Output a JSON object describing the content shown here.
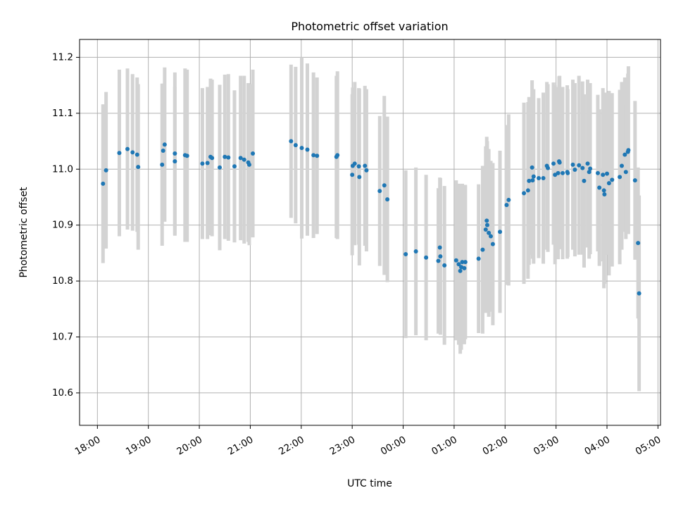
{
  "chart_data": {
    "type": "scatter",
    "title": "Photometric offset variation",
    "xlabel": "UTC time",
    "ylabel": "Photometric offset",
    "x_unit": "hours (UTC, continuous from 18:00 on first day)",
    "xlim": [
      17.65,
      29.05
    ],
    "ylim": [
      10.542,
      11.232
    ],
    "x_ticks": [
      {
        "value": 18,
        "label": "18:00"
      },
      {
        "value": 19,
        "label": "19:00"
      },
      {
        "value": 20,
        "label": "20:00"
      },
      {
        "value": 21,
        "label": "21:00"
      },
      {
        "value": 22,
        "label": "22:00"
      },
      {
        "value": 23,
        "label": "23:00"
      },
      {
        "value": 24,
        "label": "00:00"
      },
      {
        "value": 25,
        "label": "01:00"
      },
      {
        "value": 26,
        "label": "02:00"
      },
      {
        "value": 27,
        "label": "03:00"
      },
      {
        "value": 28,
        "label": "04:00"
      },
      {
        "value": 29,
        "label": "05:00"
      }
    ],
    "y_ticks": [
      {
        "value": 10.6,
        "label": "10.6"
      },
      {
        "value": 10.7,
        "label": "10.7"
      },
      {
        "value": 10.8,
        "label": "10.8"
      },
      {
        "value": 10.9,
        "label": "10.9"
      },
      {
        "value": 11.0,
        "label": "11.0"
      },
      {
        "value": 11.1,
        "label": "11.1"
      },
      {
        "value": 11.2,
        "label": "11.2"
      }
    ],
    "grid": true,
    "colors": {
      "points": "#1f77b4",
      "errorbars": "#d3d3d3"
    },
    "series": [
      {
        "points": [
          [
            18.11,
            10.974,
            0.142
          ],
          [
            18.17,
            10.998,
            0.14
          ],
          [
            18.43,
            11.029,
            0.149
          ],
          [
            18.59,
            11.036,
            0.144
          ],
          [
            18.69,
            11.03,
            0.14
          ],
          [
            18.78,
            11.026,
            0.138
          ],
          [
            18.8,
            11.004,
            0.148
          ],
          [
            19.27,
            11.008,
            0.145
          ],
          [
            19.29,
            11.033,
            0.12
          ],
          [
            19.32,
            11.044,
            0.138
          ],
          [
            19.52,
            11.028,
            0.145
          ],
          [
            19.52,
            11.014,
            0.133
          ],
          [
            19.72,
            11.025,
            0.155
          ],
          [
            19.76,
            11.024,
            0.154
          ],
          [
            20.06,
            11.01,
            0.135
          ],
          [
            20.16,
            11.011,
            0.136
          ],
          [
            20.22,
            11.022,
            0.14
          ],
          [
            20.25,
            11.02,
            0.14
          ],
          [
            20.4,
            11.003,
            0.148
          ],
          [
            20.5,
            11.022,
            0.147
          ],
          [
            20.57,
            11.021,
            0.149
          ],
          [
            20.69,
            11.005,
            0.136
          ],
          [
            20.81,
            11.02,
            0.147
          ],
          [
            20.88,
            11.017,
            0.15
          ],
          [
            20.96,
            11.012,
            0.142
          ],
          [
            20.98,
            11.008,
            0.144
          ],
          [
            21.05,
            11.028,
            0.15
          ],
          [
            21.8,
            11.05,
            0.137
          ],
          [
            21.89,
            11.043,
            0.14
          ],
          [
            22.01,
            11.038,
            0.162
          ],
          [
            22.12,
            11.035,
            0.154
          ],
          [
            22.24,
            11.025,
            0.148
          ],
          [
            22.31,
            11.024,
            0.14
          ],
          [
            22.69,
            11.022,
            0.145
          ],
          [
            22.71,
            11.025,
            0.15
          ],
          [
            23.01,
            11.006,
            0.14
          ],
          [
            23.05,
            11.01,
            0.146
          ],
          [
            23.0,
            10.99,
            0.144
          ],
          [
            23.13,
            11.005,
            0.14
          ],
          [
            23.14,
            10.986,
            0.158
          ],
          [
            23.25,
            11.006,
            0.143
          ],
          [
            23.28,
            10.998,
            0.145
          ],
          [
            23.54,
            10.961,
            0.134
          ],
          [
            23.63,
            10.971,
            0.16
          ],
          [
            23.69,
            10.946,
            0.148
          ],
          [
            24.05,
            10.848,
            0.15
          ],
          [
            24.25,
            10.853,
            0.15
          ],
          [
            24.45,
            10.842,
            0.148
          ],
          [
            24.69,
            10.836,
            0.13
          ],
          [
            24.72,
            10.86,
            0.125
          ],
          [
            24.73,
            10.844,
            0.14
          ],
          [
            24.81,
            10.828,
            0.142
          ],
          [
            25.04,
            10.837,
            0.143
          ],
          [
            25.09,
            10.83,
            0.144
          ],
          [
            25.12,
            10.818,
            0.148
          ],
          [
            25.14,
            10.825,
            0.148
          ],
          [
            25.16,
            10.834,
            0.14
          ],
          [
            25.2,
            10.823,
            0.136
          ],
          [
            25.22,
            10.834,
            0.138
          ],
          [
            25.48,
            10.84,
            0.133
          ],
          [
            25.56,
            10.856,
            0.15
          ],
          [
            25.62,
            10.892,
            0.149
          ],
          [
            25.64,
            10.908,
            0.15
          ],
          [
            25.65,
            10.9,
            0.15
          ],
          [
            25.68,
            10.886,
            0.15
          ],
          [
            25.72,
            10.88,
            0.135
          ],
          [
            25.76,
            10.866,
            0.145
          ],
          [
            25.9,
            10.888,
            0.145
          ],
          [
            26.03,
            10.936,
            0.143
          ],
          [
            26.07,
            10.945,
            0.153
          ],
          [
            26.37,
            10.957,
            0.162
          ],
          [
            26.45,
            10.962,
            0.158
          ],
          [
            26.47,
            10.979,
            0.15
          ],
          [
            26.53,
            11.003,
            0.156
          ],
          [
            26.54,
            10.98,
            0.14
          ],
          [
            26.56,
            10.987,
            0.156
          ],
          [
            26.66,
            10.984,
            0.143
          ],
          [
            26.75,
            10.984,
            0.153
          ],
          [
            26.82,
            11.006,
            0.15
          ],
          [
            26.84,
            11.002,
            0.15
          ],
          [
            26.95,
            11.01,
            0.145
          ],
          [
            26.98,
            10.99,
            0.16
          ],
          [
            27.04,
            10.993,
            0.154
          ],
          [
            27.07,
            11.012,
            0.155
          ],
          [
            27.06,
            11.014,
            0.152
          ],
          [
            27.13,
            10.993,
            0.154
          ],
          [
            27.22,
            10.995,
            0.155
          ],
          [
            27.23,
            10.993,
            0.15
          ],
          [
            27.33,
            11.008,
            0.152
          ],
          [
            27.37,
            10.999,
            0.155
          ],
          [
            27.45,
            11.007,
            0.16
          ],
          [
            27.52,
            11.002,
            0.155
          ],
          [
            27.55,
            10.979,
            0.155
          ],
          [
            27.62,
            11.01,
            0.15
          ],
          [
            27.65,
            10.995,
            0.155
          ],
          [
            27.67,
            11.001,
            0.153
          ],
          [
            27.82,
            10.993,
            0.14
          ],
          [
            27.85,
            10.967,
            0.14
          ],
          [
            27.92,
            10.99,
            0.155
          ],
          [
            27.94,
            10.962,
            0.175
          ],
          [
            27.95,
            10.955,
            0.16
          ],
          [
            28.0,
            10.992,
            0.145
          ],
          [
            28.04,
            10.975,
            0.165
          ],
          [
            28.1,
            10.981,
            0.155
          ],
          [
            28.25,
            10.986,
            0.156
          ],
          [
            28.29,
            11.006,
            0.15
          ],
          [
            28.35,
            11.026,
            0.138
          ],
          [
            28.37,
            10.995,
            0.12
          ],
          [
            28.41,
            11.031,
            0.14
          ],
          [
            28.42,
            11.034,
            0.15
          ],
          [
            28.55,
            10.98,
            0.142
          ],
          [
            28.61,
            10.868,
            0.135
          ],
          [
            28.63,
            10.778,
            0.175
          ]
        ]
      }
    ]
  }
}
